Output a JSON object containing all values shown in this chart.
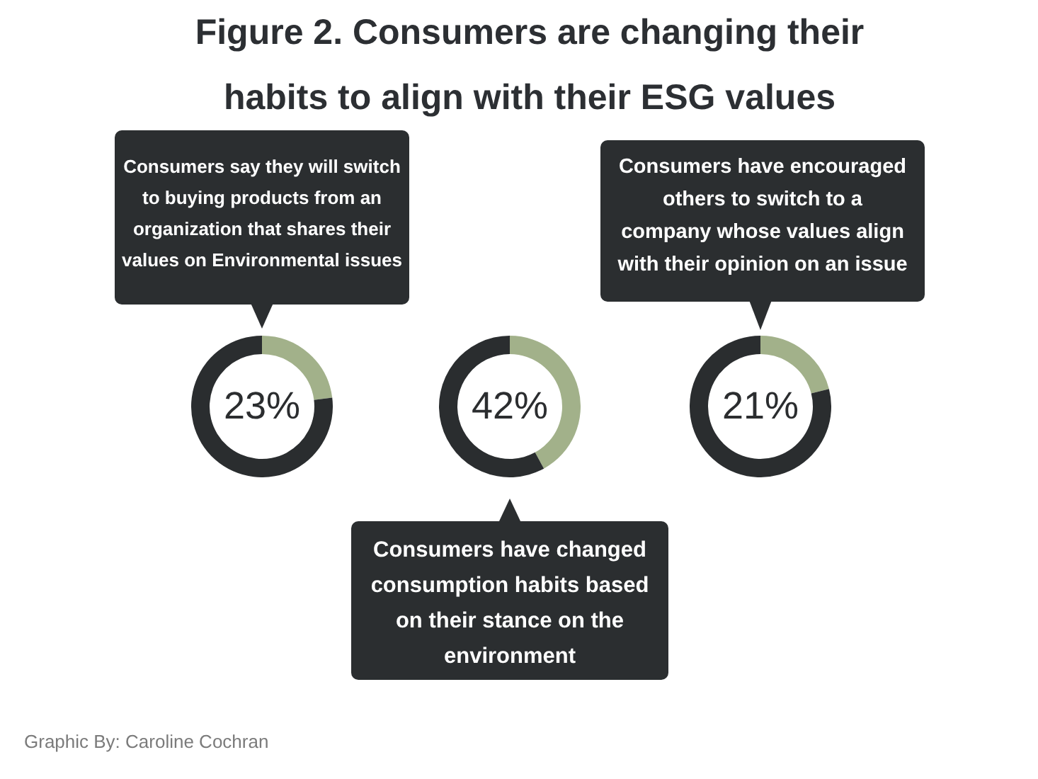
{
  "chart_data": [
    {
      "type": "donut",
      "title": "Figure 2. Consumers are changing their habits to align with their ESG values",
      "categories": [
        null,
        null
      ],
      "values": [
        23,
        77
      ],
      "colors": [
        "#a2b18a",
        "#2a2d2f"
      ],
      "value_labels": [
        "23%",
        null
      ],
      "annotations": [
        "Consumers say they will switch to buying products from an organization that shares their values on Environmental issues"
      ]
    },
    {
      "type": "donut",
      "categories": [
        null,
        null
      ],
      "values": [
        42,
        58
      ],
      "colors": [
        "#a2b18a",
        "#2a2d2f"
      ],
      "value_labels": [
        "42%",
        null
      ],
      "annotations": [
        "Consumers have changed consumption habits based on their stance on the environment"
      ]
    },
    {
      "type": "donut",
      "categories": [
        null,
        null
      ],
      "values": [
        21,
        79
      ],
      "colors": [
        "#a2b18a",
        "#2a2d2f"
      ],
      "value_labels": [
        "21%",
        null
      ],
      "annotations": [
        "Consumers have encouraged others to switch to a company whose values align with their opinion on an issue",
        "Graphic By: Caroline Cochran"
      ]
    }
  ]
}
